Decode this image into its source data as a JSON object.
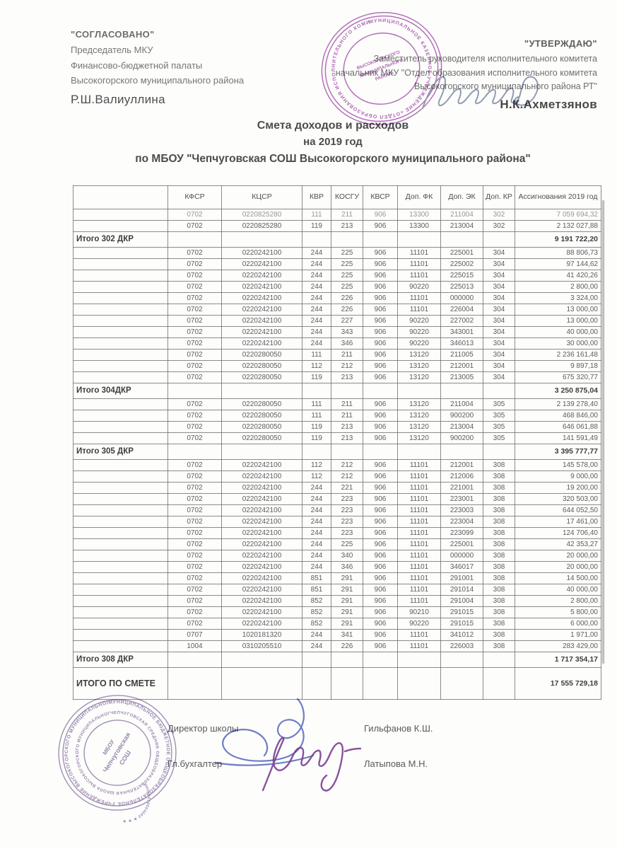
{
  "approval_left": {
    "line1": "\"СОГЛАСОВАНО\"",
    "line2": "Председатель МКУ",
    "line3": "Финансово-бюджетной палаты",
    "line4": "Высокогорского муниципального района",
    "name": "Р.Ш.Валиуллина"
  },
  "approval_right": {
    "line1": "\"УТВЕРЖДАЮ\"",
    "line2": "Заместитель руководителя исполнительного комитета",
    "line3": "начальник МКУ \"Отдел образования исполнительного комитета",
    "line4": "Высокогорского муниципального района РТ\"",
    "name": "Н.К.Ахметзянов"
  },
  "title": {
    "line1": "Смета доходов и расходов",
    "line2": "на 2019 год",
    "line3": "по МБОУ \"Чепчуговская СОШ Высокогорского муниципального района\""
  },
  "table": {
    "headers": [
      "",
      "КФСР",
      "КЦСР",
      "КВР",
      "КОСГУ",
      "КВСР",
      "Доп. ФК",
      "Доп. ЭК",
      "Доп. КР",
      "Ассигнования 2019 год"
    ],
    "rows": [
      {
        "t": "data",
        "faded": true,
        "c": [
          "0702",
          "0220825280",
          "111",
          "211",
          "906",
          "13300",
          "211004",
          "302"
        ],
        "v": "7 059 694,32"
      },
      {
        "t": "data",
        "c": [
          "0702",
          "0220825280",
          "119",
          "213",
          "906",
          "13300",
          "213004",
          "302"
        ],
        "v": "2 132 027,88"
      },
      {
        "t": "total",
        "label": "Итого 302 ДКР",
        "v": "9 191 722,20"
      },
      {
        "t": "data",
        "c": [
          "0702",
          "0220242100",
          "244",
          "225",
          "906",
          "11101",
          "225001",
          "304"
        ],
        "v": "88 806,73"
      },
      {
        "t": "data",
        "c": [
          "0702",
          "0220242100",
          "244",
          "225",
          "906",
          "11101",
          "225002",
          "304"
        ],
        "v": "97 144,62"
      },
      {
        "t": "data",
        "c": [
          "0702",
          "0220242100",
          "244",
          "225",
          "906",
          "11101",
          "225015",
          "304"
        ],
        "v": "41 420,26"
      },
      {
        "t": "data",
        "c": [
          "0702",
          "0220242100",
          "244",
          "225",
          "906",
          "90220",
          "225013",
          "304"
        ],
        "v": "2 800,00"
      },
      {
        "t": "data",
        "c": [
          "0702",
          "0220242100",
          "244",
          "226",
          "906",
          "11101",
          "000000",
          "304"
        ],
        "v": "3 324,00"
      },
      {
        "t": "data",
        "c": [
          "0702",
          "0220242100",
          "244",
          "226",
          "906",
          "11101",
          "226004",
          "304"
        ],
        "v": "13 000,00"
      },
      {
        "t": "data",
        "c": [
          "0702",
          "0220242100",
          "244",
          "227",
          "906",
          "90220",
          "227002",
          "304"
        ],
        "v": "13 000,00"
      },
      {
        "t": "data",
        "c": [
          "0702",
          "0220242100",
          "244",
          "343",
          "906",
          "90220",
          "343001",
          "304"
        ],
        "v": "40 000,00"
      },
      {
        "t": "data",
        "c": [
          "0702",
          "0220242100",
          "244",
          "346",
          "906",
          "90220",
          "346013",
          "304"
        ],
        "v": "30 000,00"
      },
      {
        "t": "data",
        "c": [
          "0702",
          "0220280050",
          "111",
          "211",
          "906",
          "13120",
          "211005",
          "304"
        ],
        "v": "2 236 161,48"
      },
      {
        "t": "data",
        "c": [
          "0702",
          "0220280050",
          "112",
          "212",
          "906",
          "13120",
          "212001",
          "304"
        ],
        "v": "9 897,18"
      },
      {
        "t": "data",
        "c": [
          "0702",
          "0220280050",
          "119",
          "213",
          "906",
          "13120",
          "213005",
          "304"
        ],
        "v": "675 320,77"
      },
      {
        "t": "total",
        "label": "Итого 304ДКР",
        "v": "3 250 875,04"
      },
      {
        "t": "data",
        "c": [
          "0702",
          "0220280050",
          "111",
          "211",
          "906",
          "13120",
          "211004",
          "305"
        ],
        "v": "2 139 278,40"
      },
      {
        "t": "data",
        "c": [
          "0702",
          "0220280050",
          "111",
          "211",
          "906",
          "13120",
          "900200",
          "305"
        ],
        "v": "468 846,00"
      },
      {
        "t": "data",
        "c": [
          "0702",
          "0220280050",
          "119",
          "213",
          "906",
          "13120",
          "213004",
          "305"
        ],
        "v": "646 061,88"
      },
      {
        "t": "data",
        "c": [
          "0702",
          "0220280050",
          "119",
          "213",
          "906",
          "13120",
          "900200",
          "305"
        ],
        "v": "141 591,49"
      },
      {
        "t": "total",
        "label": "Итого 305 ДКР",
        "v": "3 395 777,77"
      },
      {
        "t": "data",
        "c": [
          "0702",
          "0220242100",
          "112",
          "212",
          "906",
          "11101",
          "212001",
          "308"
        ],
        "v": "145 578,00"
      },
      {
        "t": "data",
        "c": [
          "0702",
          "0220242100",
          "112",
          "212",
          "906",
          "11101",
          "212006",
          "308"
        ],
        "v": "9 000,00"
      },
      {
        "t": "data",
        "c": [
          "0702",
          "0220242100",
          "244",
          "221",
          "906",
          "11101",
          "221001",
          "308"
        ],
        "v": "19 200,00"
      },
      {
        "t": "data",
        "c": [
          "0702",
          "0220242100",
          "244",
          "223",
          "906",
          "11101",
          "223001",
          "308"
        ],
        "v": "320 503,00"
      },
      {
        "t": "data",
        "c": [
          "0702",
          "0220242100",
          "244",
          "223",
          "906",
          "11101",
          "223003",
          "308"
        ],
        "v": "644 052,50"
      },
      {
        "t": "data",
        "c": [
          "0702",
          "0220242100",
          "244",
          "223",
          "906",
          "11101",
          "223004",
          "308"
        ],
        "v": "17 461,00"
      },
      {
        "t": "data",
        "c": [
          "0702",
          "0220242100",
          "244",
          "223",
          "906",
          "11101",
          "223099",
          "308"
        ],
        "v": "124 706,40"
      },
      {
        "t": "data",
        "c": [
          "0702",
          "0220242100",
          "244",
          "225",
          "906",
          "11101",
          "225001",
          "308"
        ],
        "v": "42 353,27"
      },
      {
        "t": "data",
        "c": [
          "0702",
          "0220242100",
          "244",
          "340",
          "906",
          "11101",
          "000000",
          "308"
        ],
        "v": "20 000,00"
      },
      {
        "t": "data",
        "c": [
          "0702",
          "0220242100",
          "244",
          "346",
          "906",
          "11101",
          "346017",
          "308"
        ],
        "v": "20 000,00"
      },
      {
        "t": "data",
        "c": [
          "0702",
          "0220242100",
          "851",
          "291",
          "906",
          "11101",
          "291001",
          "308"
        ],
        "v": "14 500,00"
      },
      {
        "t": "data",
        "c": [
          "0702",
          "0220242100",
          "851",
          "291",
          "906",
          "11101",
          "291014",
          "308"
        ],
        "v": "40 000,00"
      },
      {
        "t": "data",
        "c": [
          "0702",
          "0220242100",
          "852",
          "291",
          "906",
          "11101",
          "291004",
          "308"
        ],
        "v": "2 800,00"
      },
      {
        "t": "data",
        "c": [
          "0702",
          "0220242100",
          "852",
          "291",
          "906",
          "90210",
          "291015",
          "308"
        ],
        "v": "5 800,00"
      },
      {
        "t": "data",
        "c": [
          "0702",
          "0220242100",
          "852",
          "291",
          "906",
          "90220",
          "291015",
          "308"
        ],
        "v": "6 000,00"
      },
      {
        "t": "data",
        "c": [
          "0707",
          "1020181320",
          "244",
          "341",
          "906",
          "11101",
          "341012",
          "308"
        ],
        "v": "1 971,00"
      },
      {
        "t": "data",
        "c": [
          "1004",
          "0310205510",
          "244",
          "226",
          "906",
          "11101",
          "226003",
          "308"
        ],
        "v": "283 429,00"
      },
      {
        "t": "total",
        "label": "Итого 308 ДКР",
        "v": "1 717 354,17"
      },
      {
        "t": "grand",
        "label": "ИТОГО ПО СМЕТЕ",
        "v": "17 555 729,18"
      }
    ]
  },
  "footer": {
    "director_label": "Директор школы",
    "director_name": "Гильфанов К.Ш.",
    "accountant_label": "Гл.бухгалтер",
    "accountant_name": "Латыпова М.Н."
  },
  "stamps": {
    "top": {
      "color": "#a050a8",
      "ring_text": "МУНИЦИПАЛЬНОЕ КАЗЕННОЕ УЧРЕЖДЕНИЕ «ОТДЕЛ ОБРАЗОВАНИЯ ИСПОЛНИТЕЛЬНОГО КОМИТЕТА» • РЕСПУБЛИКИ ТАТАРСТАН •",
      "center_line1": "ВЫСОКОГОРСКОГО",
      "center_line2": "МУНИЦИПАЛЬНОГО",
      "center_line3": "РАЙОНА"
    },
    "bottom": {
      "color": "#8b74a4",
      "ring_text_outer": "МУНИЦИПАЛЬНОЕ БЮДЖЕТНОЕ ОБЩЕОБРАЗОВАТЕЛЬНОЕ УЧРЕЖДЕНИЕ ВЫСОКОГОРСКОГО МУНИЦИПАЛЬНОГО РАЙОНА РЕСПУБЛИКИ ТАТАРСТАН",
      "ring_text_inner": "ЧЕПЧУГОВСКАЯ СРЕДНЯЯ ОБЩЕОБРАЗОВАТЕЛЬНАЯ ШКОЛА ВЫСОКОГОРСКОГО МУНИЦИПАЛЬНОГО РАЙОНА",
      "ring_text_inn": "ИНН 1616004603 ★ ★ ★",
      "center_line1": "МБОУ",
      "center_line2": "Чепчуговская",
      "center_line3": "СОШ"
    }
  }
}
